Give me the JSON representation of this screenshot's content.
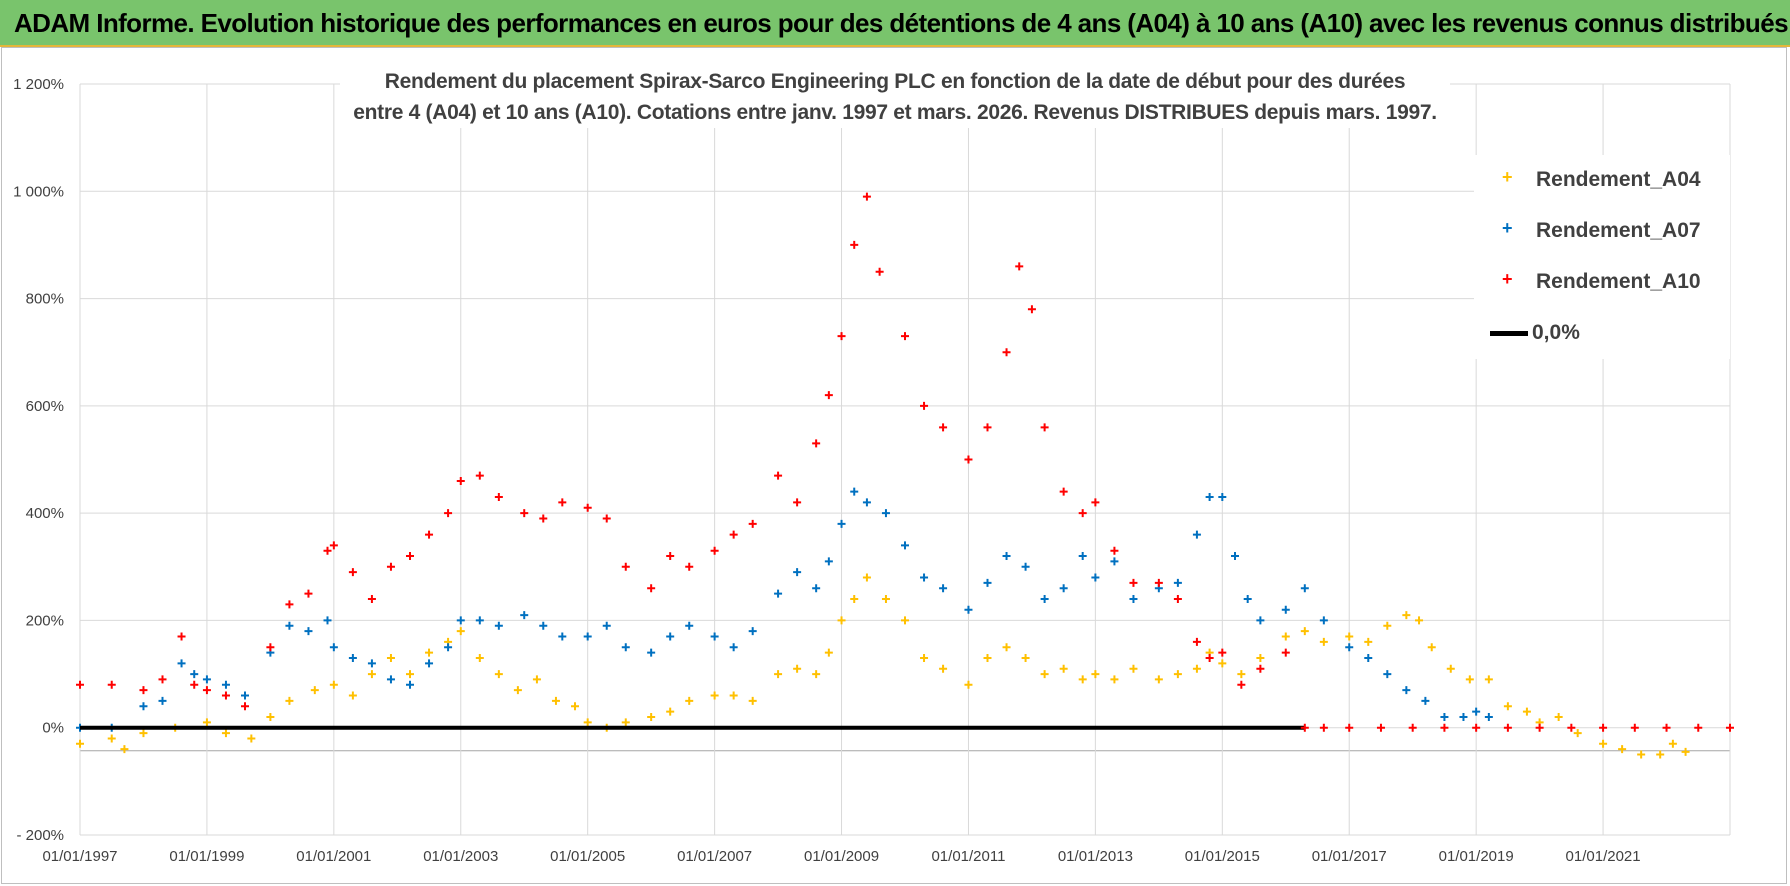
{
  "banner": {
    "title": "ADAM Informe. Evolution historique des performances en euros pour des détentions de 4 ans (A04) à 10 ans (A10) avec les revenus connus distribués"
  },
  "colors": {
    "banner_bg": "#79c46c",
    "banner_border": "#e4b63a",
    "a04": "#ffc000",
    "a07": "#0070c0",
    "a10": "#ff0000",
    "zero": "#000000",
    "grid": "#d9d9d9"
  },
  "chart_data": {
    "type": "scatter",
    "title_line1": "Rendement du placement Spirax-Sarco Engineering PLC en fonction de la date de début pour des durées",
    "title_line2": "entre 4 (A04) et 10 ans (A10).  Cotations entre janv. 1997 et mars. 2026. Revenus DISTRIBUES depuis mars. 1997.",
    "ylim": [
      -200,
      1200
    ],
    "yticks": [
      -200,
      0,
      200,
      400,
      600,
      800,
      1000,
      1200
    ],
    "ytick_labels": [
      "- 200%",
      "0%",
      "200%",
      "400%",
      "600%",
      "800%",
      "1 000%",
      "1 200%"
    ],
    "xlim": [
      1997.0,
      2023.0
    ],
    "xticks": [
      1997,
      1999,
      2001,
      2003,
      2005,
      2007,
      2009,
      2011,
      2013,
      2015,
      2017,
      2019,
      2021
    ],
    "xtick_labels": [
      "01/01/1997",
      "01/01/1999",
      "01/01/2001",
      "01/01/2003",
      "01/01/2005",
      "01/01/2007",
      "01/01/2009",
      "01/01/2011",
      "01/01/2013",
      "01/01/2015",
      "01/01/2017",
      "01/01/2019",
      "01/01/2021"
    ],
    "grid": true,
    "legend_position": "top-right",
    "series": [
      {
        "name": "Rendement_A04",
        "color": "#ffc000",
        "marker": "+",
        "points": [
          [
            1997.0,
            -30
          ],
          [
            1997.5,
            -20
          ],
          [
            1997.7,
            -40
          ],
          [
            1998.0,
            -10
          ],
          [
            1998.5,
            0
          ],
          [
            1999.0,
            10
          ],
          [
            1999.3,
            -10
          ],
          [
            1999.7,
            -20
          ],
          [
            2000.0,
            20
          ],
          [
            2000.3,
            50
          ],
          [
            2000.7,
            70
          ],
          [
            2001.0,
            80
          ],
          [
            2001.3,
            60
          ],
          [
            2001.6,
            100
          ],
          [
            2001.9,
            130
          ],
          [
            2002.2,
            100
          ],
          [
            2002.5,
            140
          ],
          [
            2002.8,
            160
          ],
          [
            2003.0,
            180
          ],
          [
            2003.3,
            130
          ],
          [
            2003.6,
            100
          ],
          [
            2003.9,
            70
          ],
          [
            2004.2,
            90
          ],
          [
            2004.5,
            50
          ],
          [
            2004.8,
            40
          ],
          [
            2005.0,
            10
          ],
          [
            2005.3,
            0
          ],
          [
            2005.6,
            10
          ],
          [
            2006.0,
            20
          ],
          [
            2006.3,
            30
          ],
          [
            2006.6,
            50
          ],
          [
            2007.0,
            60
          ],
          [
            2007.3,
            60
          ],
          [
            2007.6,
            50
          ],
          [
            2008.0,
            100
          ],
          [
            2008.3,
            110
          ],
          [
            2008.6,
            100
          ],
          [
            2008.8,
            140
          ],
          [
            2009.0,
            200
          ],
          [
            2009.2,
            240
          ],
          [
            2009.4,
            280
          ],
          [
            2009.7,
            240
          ],
          [
            2010.0,
            200
          ],
          [
            2010.3,
            130
          ],
          [
            2010.6,
            110
          ],
          [
            2011.0,
            80
          ],
          [
            2011.3,
            130
          ],
          [
            2011.6,
            150
          ],
          [
            2011.9,
            130
          ],
          [
            2012.2,
            100
          ],
          [
            2012.5,
            110
          ],
          [
            2012.8,
            90
          ],
          [
            2013.0,
            100
          ],
          [
            2013.3,
            90
          ],
          [
            2013.6,
            110
          ],
          [
            2014.0,
            90
          ],
          [
            2014.3,
            100
          ],
          [
            2014.6,
            110
          ],
          [
            2014.8,
            140
          ],
          [
            2015.0,
            120
          ],
          [
            2015.3,
            100
          ],
          [
            2015.6,
            130
          ],
          [
            2016.0,
            170
          ],
          [
            2016.3,
            180
          ],
          [
            2016.6,
            160
          ],
          [
            2017.0,
            170
          ],
          [
            2017.3,
            160
          ],
          [
            2017.6,
            190
          ],
          [
            2017.9,
            210
          ],
          [
            2018.1,
            200
          ],
          [
            2018.3,
            150
          ],
          [
            2018.6,
            110
          ],
          [
            2018.9,
            90
          ],
          [
            2019.2,
            90
          ],
          [
            2019.5,
            40
          ],
          [
            2019.8,
            30
          ],
          [
            2020.0,
            10
          ],
          [
            2020.3,
            20
          ],
          [
            2020.6,
            -10
          ],
          [
            2021.0,
            -30
          ],
          [
            2021.3,
            -40
          ],
          [
            2021.6,
            -50
          ],
          [
            2021.9,
            -50
          ],
          [
            2022.1,
            -30
          ],
          [
            2022.3,
            -45
          ]
        ]
      },
      {
        "name": "Rendement_A07",
        "color": "#0070c0",
        "marker": "+",
        "points": [
          [
            1997.0,
            0
          ],
          [
            1997.5,
            0
          ],
          [
            1998.0,
            40
          ],
          [
            1998.3,
            50
          ],
          [
            1998.6,
            120
          ],
          [
            1998.8,
            100
          ],
          [
            1999.0,
            90
          ],
          [
            1999.3,
            80
          ],
          [
            1999.6,
            60
          ],
          [
            2000.0,
            140
          ],
          [
            2000.3,
            190
          ],
          [
            2000.6,
            180
          ],
          [
            2000.9,
            200
          ],
          [
            2001.0,
            150
          ],
          [
            2001.3,
            130
          ],
          [
            2001.6,
            120
          ],
          [
            2001.9,
            90
          ],
          [
            2002.2,
            80
          ],
          [
            2002.5,
            120
          ],
          [
            2002.8,
            150
          ],
          [
            2003.0,
            200
          ],
          [
            2003.3,
            200
          ],
          [
            2003.6,
            190
          ],
          [
            2004.0,
            210
          ],
          [
            2004.3,
            190
          ],
          [
            2004.6,
            170
          ],
          [
            2005.0,
            170
          ],
          [
            2005.3,
            190
          ],
          [
            2005.6,
            150
          ],
          [
            2006.0,
            140
          ],
          [
            2006.3,
            170
          ],
          [
            2006.6,
            190
          ],
          [
            2007.0,
            170
          ],
          [
            2007.3,
            150
          ],
          [
            2007.6,
            180
          ],
          [
            2008.0,
            250
          ],
          [
            2008.3,
            290
          ],
          [
            2008.6,
            260
          ],
          [
            2008.8,
            310
          ],
          [
            2009.0,
            380
          ],
          [
            2009.2,
            440
          ],
          [
            2009.4,
            420
          ],
          [
            2009.7,
            400
          ],
          [
            2010.0,
            340
          ],
          [
            2010.3,
            280
          ],
          [
            2010.6,
            260
          ],
          [
            2011.0,
            220
          ],
          [
            2011.3,
            270
          ],
          [
            2011.6,
            320
          ],
          [
            2011.9,
            300
          ],
          [
            2012.2,
            240
          ],
          [
            2012.5,
            260
          ],
          [
            2012.8,
            320
          ],
          [
            2013.0,
            280
          ],
          [
            2013.3,
            310
          ],
          [
            2013.6,
            240
          ],
          [
            2014.0,
            260
          ],
          [
            2014.3,
            270
          ],
          [
            2014.6,
            360
          ],
          [
            2014.8,
            430
          ],
          [
            2015.0,
            430
          ],
          [
            2015.2,
            320
          ],
          [
            2015.4,
            240
          ],
          [
            2015.6,
            200
          ],
          [
            2016.0,
            220
          ],
          [
            2016.3,
            260
          ],
          [
            2016.6,
            200
          ],
          [
            2017.0,
            150
          ],
          [
            2017.3,
            130
          ],
          [
            2017.6,
            100
          ],
          [
            2017.9,
            70
          ],
          [
            2018.2,
            50
          ],
          [
            2018.5,
            20
          ],
          [
            2018.8,
            20
          ],
          [
            2019.0,
            30
          ],
          [
            2019.2,
            20
          ]
        ]
      },
      {
        "name": "Rendement_A10",
        "color": "#ff0000",
        "marker": "+",
        "points": [
          [
            1997.0,
            80
          ],
          [
            1997.5,
            80
          ],
          [
            1998.0,
            70
          ],
          [
            1998.3,
            90
          ],
          [
            1998.6,
            170
          ],
          [
            1998.8,
            80
          ],
          [
            1999.0,
            70
          ],
          [
            1999.3,
            60
          ],
          [
            1999.6,
            40
          ],
          [
            2000.0,
            150
          ],
          [
            2000.3,
            230
          ],
          [
            2000.6,
            250
          ],
          [
            2000.9,
            330
          ],
          [
            2001.0,
            340
          ],
          [
            2001.3,
            290
          ],
          [
            2001.6,
            240
          ],
          [
            2001.9,
            300
          ],
          [
            2002.2,
            320
          ],
          [
            2002.5,
            360
          ],
          [
            2002.8,
            400
          ],
          [
            2003.0,
            460
          ],
          [
            2003.3,
            470
          ],
          [
            2003.6,
            430
          ],
          [
            2004.0,
            400
          ],
          [
            2004.3,
            390
          ],
          [
            2004.6,
            420
          ],
          [
            2005.0,
            410
          ],
          [
            2005.3,
            390
          ],
          [
            2005.6,
            300
          ],
          [
            2006.0,
            260
          ],
          [
            2006.3,
            320
          ],
          [
            2006.6,
            300
          ],
          [
            2007.0,
            330
          ],
          [
            2007.3,
            360
          ],
          [
            2007.6,
            380
          ],
          [
            2008.0,
            470
          ],
          [
            2008.3,
            420
          ],
          [
            2008.6,
            530
          ],
          [
            2008.8,
            620
          ],
          [
            2009.0,
            730
          ],
          [
            2009.2,
            900
          ],
          [
            2009.4,
            990
          ],
          [
            2009.6,
            850
          ],
          [
            2010.0,
            730
          ],
          [
            2010.3,
            600
          ],
          [
            2010.6,
            560
          ],
          [
            2011.0,
            500
          ],
          [
            2011.3,
            560
          ],
          [
            2011.6,
            700
          ],
          [
            2011.8,
            860
          ],
          [
            2012.0,
            780
          ],
          [
            2012.2,
            560
          ],
          [
            2012.5,
            440
          ],
          [
            2012.8,
            400
          ],
          [
            2013.0,
            420
          ],
          [
            2013.3,
            330
          ],
          [
            2013.6,
            270
          ],
          [
            2014.0,
            270
          ],
          [
            2014.3,
            240
          ],
          [
            2014.6,
            160
          ],
          [
            2014.8,
            130
          ],
          [
            2015.0,
            140
          ],
          [
            2015.3,
            80
          ],
          [
            2015.6,
            110
          ],
          [
            2016.0,
            140
          ],
          [
            2016.3,
            0
          ],
          [
            2016.6,
            0
          ],
          [
            2017.0,
            0
          ],
          [
            2017.5,
            0
          ],
          [
            2018.0,
            0
          ],
          [
            2018.5,
            0
          ],
          [
            2019.0,
            0
          ],
          [
            2019.5,
            0
          ],
          [
            2020.0,
            0
          ],
          [
            2020.5,
            0
          ],
          [
            2021.0,
            0
          ],
          [
            2021.5,
            0
          ],
          [
            2022.0,
            0
          ],
          [
            2022.5,
            0
          ],
          [
            2023.0,
            0
          ]
        ]
      },
      {
        "name": "0,0%",
        "color": "#000000",
        "marker": "line",
        "points": [
          [
            1997.0,
            0
          ],
          [
            2016.3,
            0
          ]
        ]
      }
    ]
  }
}
